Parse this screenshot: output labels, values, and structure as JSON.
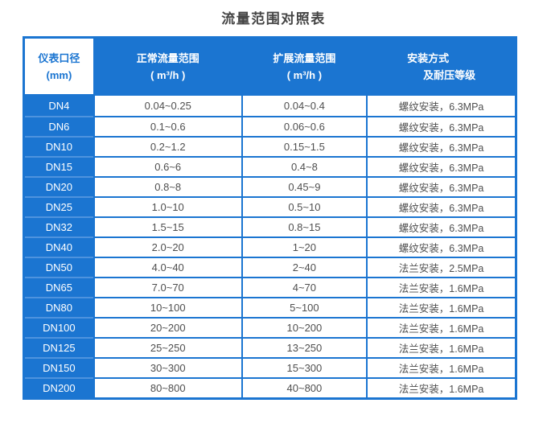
{
  "title": "流量范围对照表",
  "colors": {
    "accent_blue": "#1b75d1",
    "light_divider": "#4e93de",
    "cell_text": "#4f4f4f",
    "title_text": "#454545",
    "header_text": "#ffffff"
  },
  "chart_data": {
    "type": "table",
    "title": "流量范围对照表",
    "headers": [
      {
        "line1": "仪表口径",
        "line2": "(mm)"
      },
      {
        "line1": "正常流量范围",
        "line2": "( m³/h )"
      },
      {
        "line1": "扩展流量范围",
        "line2": "( m³/h )"
      },
      {
        "line1": "安装方式",
        "line2": "及耐压等级"
      }
    ],
    "rows": [
      {
        "dn": "DN4",
        "normal_range": "0.04~0.25",
        "extended_range": "0.04~0.4",
        "installation": "螺纹安装，6.3MPa"
      },
      {
        "dn": "DN6",
        "normal_range": "0.1~0.6",
        "extended_range": "0.06~0.6",
        "installation": "螺纹安装，6.3MPa"
      },
      {
        "dn": "DN10",
        "normal_range": "0.2~1.2",
        "extended_range": "0.15~1.5",
        "installation": "螺纹安装，6.3MPa"
      },
      {
        "dn": "DN15",
        "normal_range": "0.6~6",
        "extended_range": "0.4~8",
        "installation": "螺纹安装，6.3MPa"
      },
      {
        "dn": "DN20",
        "normal_range": "0.8~8",
        "extended_range": "0.45~9",
        "installation": "螺纹安装，6.3MPa"
      },
      {
        "dn": "DN25",
        "normal_range": "1.0~10",
        "extended_range": "0.5~10",
        "installation": "螺纹安装，6.3MPa"
      },
      {
        "dn": "DN32",
        "normal_range": "1.5~15",
        "extended_range": "0.8~15",
        "installation": "螺纹安装，6.3MPa"
      },
      {
        "dn": "DN40",
        "normal_range": "2.0~20",
        "extended_range": "1~20",
        "installation": "螺纹安装，6.3MPa"
      },
      {
        "dn": "DN50",
        "normal_range": "4.0~40",
        "extended_range": "2~40",
        "installation": "法兰安装，2.5MPa"
      },
      {
        "dn": "DN65",
        "normal_range": "7.0~70",
        "extended_range": "4~70",
        "installation": "法兰安装，1.6MPa"
      },
      {
        "dn": "DN80",
        "normal_range": "10~100",
        "extended_range": "5~100",
        "installation": "法兰安装，1.6MPa"
      },
      {
        "dn": "DN100",
        "normal_range": "20~200",
        "extended_range": "10~200",
        "installation": "法兰安装，1.6MPa"
      },
      {
        "dn": "DN125",
        "normal_range": "25~250",
        "extended_range": "13~250",
        "installation": "法兰安装，1.6MPa"
      },
      {
        "dn": "DN150",
        "normal_range": "30~300",
        "extended_range": "15~300",
        "installation": "法兰安装，1.6MPa"
      },
      {
        "dn": "DN200",
        "normal_range": "80~800",
        "extended_range": "40~800",
        "installation": "法兰安装，1.6MPa"
      }
    ]
  }
}
